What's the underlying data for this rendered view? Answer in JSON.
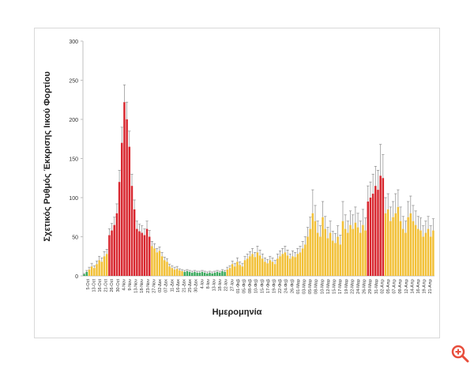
{
  "chart_data": {
    "type": "bar",
    "xlabel": "Ημερομηνία",
    "ylabel": "Σχετικός Ρυθμός Έκκρισης Ιικού Φορτίου",
    "ylim": [
      0,
      300
    ],
    "yticks": [
      0,
      50,
      100,
      150,
      200,
      250,
      300
    ],
    "grid": false,
    "legend": "none",
    "colors": {
      "green": "#3aaa5c",
      "yellow": "#f2c037",
      "red": "#d8262e",
      "error_bar": "#8c8c8c"
    },
    "tick_labels": [
      "5-Oct",
      "13-Oct",
      "16-Oct",
      "21-Oct",
      "26-Oct",
      "30-Oct",
      "4-Nov",
      "9-Nov",
      "13-Nov",
      "18-Nov",
      "23-Nov",
      "27-Nov",
      "02-Δεκ",
      "07-Δεκ",
      "11-Δεκ",
      "16-Δεκ",
      "21-Δεκ",
      "25-Δεκ",
      "30-Δεκ",
      "4-Ιαν",
      "8-Ιαν",
      "13-Ιαν",
      "18-Ιαν",
      "22-Ιαν",
      "27-Ιαν",
      "01-Φεβ",
      "05-Φεβ",
      "08-Φεβ",
      "10-Φεβ",
      "15-Φεβ",
      "17-Φεβ",
      "19-Φεβ",
      "22-Φεβ",
      "24-Φεβ",
      "26-Φεβ",
      "01-Μαρ",
      "03-Μαρ",
      "05-Μαρ",
      "08-Μαρ",
      "10-Μαρ",
      "12-Μαρ",
      "15-Μαρ",
      "17-Μαρ",
      "19-Μαρ",
      "22-Μαρ",
      "24-Μαρ",
      "26-Μαρ",
      "29-Μαρ",
      "31-Μαρ",
      "02-Απρ",
      "05-Απρ",
      "07-Απρ",
      "09-Απρ",
      "12-Απρ",
      "14-Απρ",
      "16-Απρ",
      "19-Απρ",
      "21-Απρ"
    ],
    "bars": [
      {
        "v": 2,
        "e": 1,
        "c": "green"
      },
      {
        "v": 5,
        "e": 2,
        "c": "green"
      },
      {
        "v": 8,
        "e": 3,
        "c": "yellow"
      },
      {
        "v": 12,
        "e": 4,
        "c": "yellow"
      },
      {
        "v": 10,
        "e": 3,
        "c": "yellow"
      },
      {
        "v": 15,
        "e": 4,
        "c": "yellow"
      },
      {
        "v": 20,
        "e": 5,
        "c": "yellow"
      },
      {
        "v": 18,
        "e": 5,
        "c": "yellow"
      },
      {
        "v": 25,
        "e": 6,
        "c": "yellow"
      },
      {
        "v": 28,
        "e": 6,
        "c": "yellow"
      },
      {
        "v": 52,
        "e": 8,
        "c": "red"
      },
      {
        "v": 58,
        "e": 9,
        "c": "red"
      },
      {
        "v": 65,
        "e": 10,
        "c": "red"
      },
      {
        "v": 80,
        "e": 12,
        "c": "red"
      },
      {
        "v": 120,
        "e": 15,
        "c": "red"
      },
      {
        "v": 170,
        "e": 20,
        "c": "red"
      },
      {
        "v": 222,
        "e": 22,
        "c": "red"
      },
      {
        "v": 200,
        "e": 22,
        "c": "red"
      },
      {
        "v": 165,
        "e": 20,
        "c": "red"
      },
      {
        "v": 115,
        "e": 15,
        "c": "red"
      },
      {
        "v": 85,
        "e": 12,
        "c": "red"
      },
      {
        "v": 60,
        "e": 10,
        "c": "red"
      },
      {
        "v": 57,
        "e": 9,
        "c": "red"
      },
      {
        "v": 55,
        "e": 9,
        "c": "red"
      },
      {
        "v": 52,
        "e": 8,
        "c": "red"
      },
      {
        "v": 60,
        "e": 10,
        "c": "red"
      },
      {
        "v": 50,
        "e": 8,
        "c": "red"
      },
      {
        "v": 38,
        "e": 6,
        "c": "yellow"
      },
      {
        "v": 35,
        "e": 6,
        "c": "yellow"
      },
      {
        "v": 30,
        "e": 5,
        "c": "yellow"
      },
      {
        "v": 32,
        "e": 5,
        "c": "yellow"
      },
      {
        "v": 25,
        "e": 5,
        "c": "yellow"
      },
      {
        "v": 20,
        "e": 4,
        "c": "yellow"
      },
      {
        "v": 18,
        "e": 4,
        "c": "yellow"
      },
      {
        "v": 12,
        "e": 3,
        "c": "yellow"
      },
      {
        "v": 10,
        "e": 3,
        "c": "yellow"
      },
      {
        "v": 8,
        "e": 3,
        "c": "yellow"
      },
      {
        "v": 9,
        "e": 3,
        "c": "yellow"
      },
      {
        "v": 7,
        "e": 2,
        "c": "yellow"
      },
      {
        "v": 6,
        "e": 2,
        "c": "yellow"
      },
      {
        "v": 5,
        "e": 2,
        "c": "green"
      },
      {
        "v": 6,
        "e": 2,
        "c": "green"
      },
      {
        "v": 5,
        "e": 2,
        "c": "green"
      },
      {
        "v": 4,
        "e": 2,
        "c": "green"
      },
      {
        "v": 5,
        "e": 2,
        "c": "green"
      },
      {
        "v": 4,
        "e": 2,
        "c": "green"
      },
      {
        "v": 4,
        "e": 2,
        "c": "green"
      },
      {
        "v": 5,
        "e": 2,
        "c": "green"
      },
      {
        "v": 4,
        "e": 2,
        "c": "green"
      },
      {
        "v": 3,
        "e": 2,
        "c": "green"
      },
      {
        "v": 4,
        "e": 2,
        "c": "green"
      },
      {
        "v": 3,
        "e": 2,
        "c": "green"
      },
      {
        "v": 4,
        "e": 2,
        "c": "green"
      },
      {
        "v": 5,
        "e": 2,
        "c": "green"
      },
      {
        "v": 4,
        "e": 2,
        "c": "green"
      },
      {
        "v": 6,
        "e": 2,
        "c": "green"
      },
      {
        "v": 5,
        "e": 2,
        "c": "green"
      },
      {
        "v": 8,
        "e": 3,
        "c": "yellow"
      },
      {
        "v": 10,
        "e": 3,
        "c": "yellow"
      },
      {
        "v": 15,
        "e": 4,
        "c": "yellow"
      },
      {
        "v": 12,
        "e": 4,
        "c": "yellow"
      },
      {
        "v": 18,
        "e": 5,
        "c": "yellow"
      },
      {
        "v": 14,
        "e": 4,
        "c": "yellow"
      },
      {
        "v": 12,
        "e": 4,
        "c": "yellow"
      },
      {
        "v": 20,
        "e": 5,
        "c": "yellow"
      },
      {
        "v": 22,
        "e": 6,
        "c": "yellow"
      },
      {
        "v": 25,
        "e": 6,
        "c": "yellow"
      },
      {
        "v": 28,
        "e": 7,
        "c": "yellow"
      },
      {
        "v": 24,
        "e": 6,
        "c": "yellow"
      },
      {
        "v": 30,
        "e": 8,
        "c": "yellow"
      },
      {
        "v": 26,
        "e": 7,
        "c": "yellow"
      },
      {
        "v": 22,
        "e": 6,
        "c": "yellow"
      },
      {
        "v": 18,
        "e": 5,
        "c": "yellow"
      },
      {
        "v": 16,
        "e": 5,
        "c": "yellow"
      },
      {
        "v": 20,
        "e": 5,
        "c": "yellow"
      },
      {
        "v": 18,
        "e": 5,
        "c": "yellow"
      },
      {
        "v": 15,
        "e": 5,
        "c": "yellow"
      },
      {
        "v": 22,
        "e": 6,
        "c": "yellow"
      },
      {
        "v": 25,
        "e": 7,
        "c": "yellow"
      },
      {
        "v": 28,
        "e": 7,
        "c": "yellow"
      },
      {
        "v": 30,
        "e": 8,
        "c": "yellow"
      },
      {
        "v": 26,
        "e": 7,
        "c": "yellow"
      },
      {
        "v": 22,
        "e": 6,
        "c": "yellow"
      },
      {
        "v": 25,
        "e": 7,
        "c": "yellow"
      },
      {
        "v": 24,
        "e": 6,
        "c": "yellow"
      },
      {
        "v": 28,
        "e": 7,
        "c": "yellow"
      },
      {
        "v": 30,
        "e": 8,
        "c": "yellow"
      },
      {
        "v": 35,
        "e": 9,
        "c": "yellow"
      },
      {
        "v": 40,
        "e": 10,
        "c": "yellow"
      },
      {
        "v": 50,
        "e": 12,
        "c": "yellow"
      },
      {
        "v": 60,
        "e": 15,
        "c": "yellow"
      },
      {
        "v": 80,
        "e": 30,
        "c": "yellow"
      },
      {
        "v": 70,
        "e": 20,
        "c": "yellow"
      },
      {
        "v": 55,
        "e": 15,
        "c": "yellow"
      },
      {
        "v": 50,
        "e": 14,
        "c": "yellow"
      },
      {
        "v": 75,
        "e": 20,
        "c": "yellow"
      },
      {
        "v": 60,
        "e": 16,
        "c": "yellow"
      },
      {
        "v": 48,
        "e": 14,
        "c": "yellow"
      },
      {
        "v": 55,
        "e": 15,
        "c": "yellow"
      },
      {
        "v": 45,
        "e": 12,
        "c": "yellow"
      },
      {
        "v": 42,
        "e": 12,
        "c": "yellow"
      },
      {
        "v": 50,
        "e": 14,
        "c": "yellow"
      },
      {
        "v": 40,
        "e": 12,
        "c": "yellow"
      },
      {
        "v": 70,
        "e": 25,
        "c": "yellow"
      },
      {
        "v": 60,
        "e": 18,
        "c": "yellow"
      },
      {
        "v": 55,
        "e": 15,
        "c": "yellow"
      },
      {
        "v": 65,
        "e": 18,
        "c": "yellow"
      },
      {
        "v": 60,
        "e": 18,
        "c": "yellow"
      },
      {
        "v": 68,
        "e": 20,
        "c": "yellow"
      },
      {
        "v": 62,
        "e": 18,
        "c": "yellow"
      },
      {
        "v": 55,
        "e": 15,
        "c": "yellow"
      },
      {
        "v": 65,
        "e": 20,
        "c": "yellow"
      },
      {
        "v": 58,
        "e": 16,
        "c": "yellow"
      },
      {
        "v": 95,
        "e": 20,
        "c": "red"
      },
      {
        "v": 100,
        "e": 20,
        "c": "red"
      },
      {
        "v": 105,
        "e": 25,
        "c": "red"
      },
      {
        "v": 115,
        "e": 25,
        "c": "red"
      },
      {
        "v": 110,
        "e": 25,
        "c": "red"
      },
      {
        "v": 128,
        "e": 40,
        "c": "red"
      },
      {
        "v": 125,
        "e": 30,
        "c": "red"
      },
      {
        "v": 80,
        "e": 20,
        "c": "yellow"
      },
      {
        "v": 85,
        "e": 20,
        "c": "yellow"
      },
      {
        "v": 70,
        "e": 18,
        "c": "yellow"
      },
      {
        "v": 75,
        "e": 20,
        "c": "yellow"
      },
      {
        "v": 80,
        "e": 25,
        "c": "yellow"
      },
      {
        "v": 88,
        "e": 22,
        "c": "yellow"
      },
      {
        "v": 70,
        "e": 18,
        "c": "yellow"
      },
      {
        "v": 60,
        "e": 16,
        "c": "yellow"
      },
      {
        "v": 55,
        "e": 15,
        "c": "yellow"
      },
      {
        "v": 75,
        "e": 20,
        "c": "yellow"
      },
      {
        "v": 80,
        "e": 22,
        "c": "yellow"
      },
      {
        "v": 70,
        "e": 20,
        "c": "yellow"
      },
      {
        "v": 65,
        "e": 18,
        "c": "yellow"
      },
      {
        "v": 60,
        "e": 16,
        "c": "yellow"
      },
      {
        "v": 58,
        "e": 16,
        "c": "yellow"
      },
      {
        "v": 50,
        "e": 14,
        "c": "yellow"
      },
      {
        "v": 55,
        "e": 15,
        "c": "yellow"
      },
      {
        "v": 60,
        "e": 16,
        "c": "yellow"
      },
      {
        "v": 50,
        "e": 14,
        "c": "yellow"
      },
      {
        "v": 58,
        "e": 15,
        "c": "yellow"
      }
    ]
  },
  "zoom": {
    "icon": "zoom-in-icon",
    "color": "#e84e3c"
  }
}
